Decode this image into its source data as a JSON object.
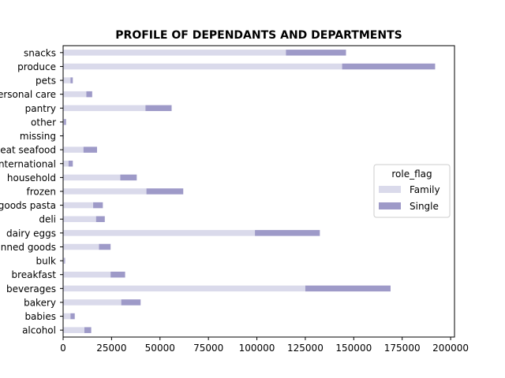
{
  "chart_data": {
    "type": "bar",
    "orientation": "horizontal",
    "stacked": true,
    "title": "PROFILE OF DEPENDANTS AND DEPARTMENTS",
    "xlabel": "",
    "ylabel": "",
    "xlim": [
      0,
      202000
    ],
    "xticks": [
      0,
      25000,
      50000,
      75000,
      100000,
      125000,
      150000,
      175000,
      200000
    ],
    "categories": [
      "alcohol",
      "babies",
      "bakery",
      "beverages",
      "breakfast",
      "bulk",
      "canned goods",
      "dairy eggs",
      "deli",
      "dry goods pasta",
      "frozen",
      "household",
      "international",
      "meat seafood",
      "missing",
      "other",
      "pantry",
      "personal care",
      "pets",
      "produce",
      "snacks"
    ],
    "series": [
      {
        "name": "Family",
        "color": "#dadaeb",
        "values": [
          11000,
          3800,
          30000,
          125000,
          24500,
          600,
          18500,
          99000,
          17000,
          15500,
          43000,
          29500,
          2800,
          10500,
          200,
          500,
          42500,
          12000,
          3800,
          144000,
          115000
        ]
      },
      {
        "name": "Single",
        "color": "#9e9ac8",
        "values": [
          3500,
          2200,
          10000,
          44000,
          7500,
          400,
          6000,
          33500,
          4500,
          5000,
          19000,
          8500,
          2200,
          7000,
          100,
          1000,
          13500,
          3000,
          1200,
          48000,
          31000
        ]
      }
    ],
    "legend": {
      "title": "role_flag",
      "position": "center-right"
    },
    "grid": false
  }
}
